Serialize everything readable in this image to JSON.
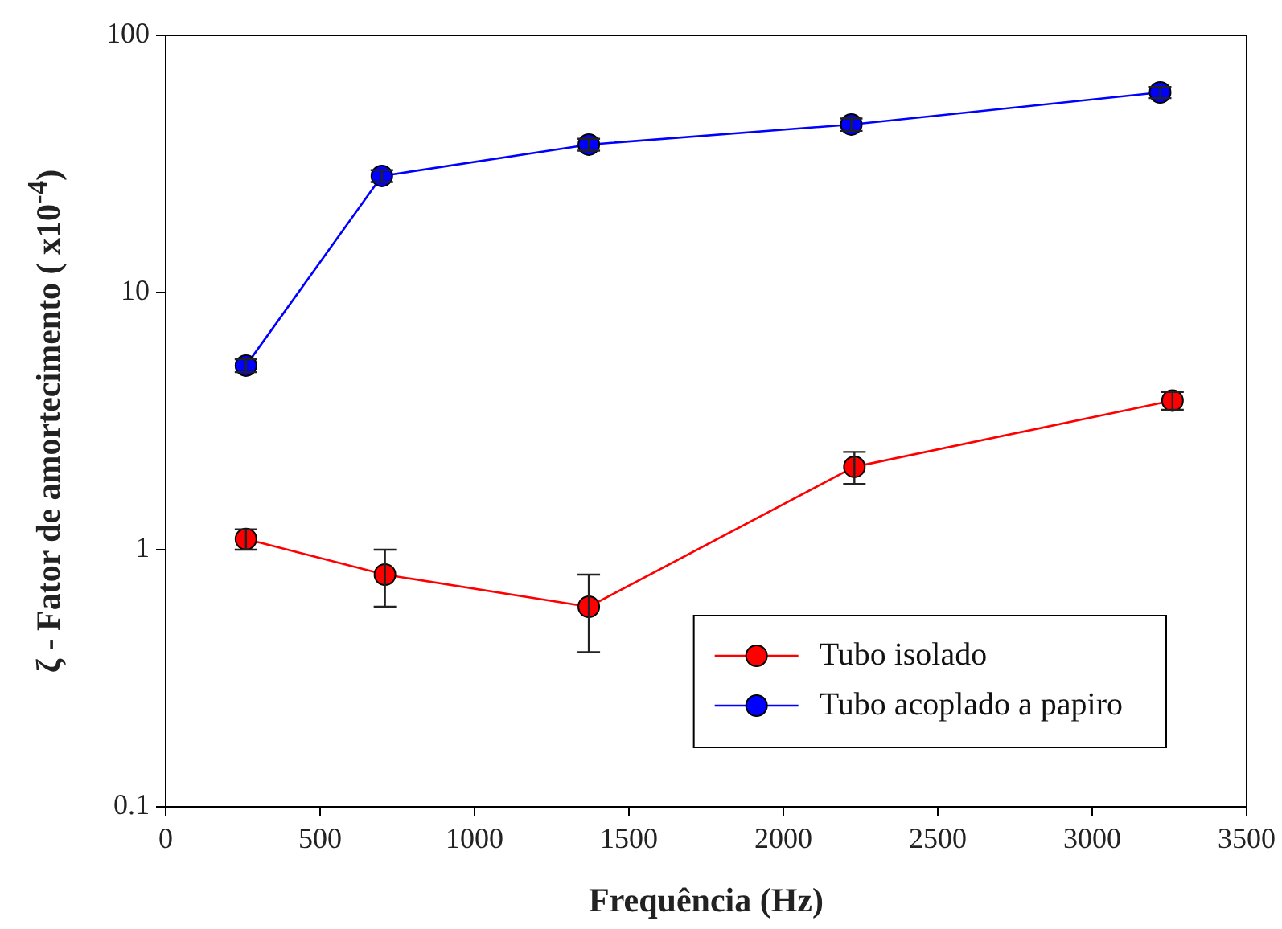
{
  "chart_data": {
    "type": "line",
    "xlabel": "Frequência (Hz)",
    "ylabel": "ζ - Fator de amortecimento ( x10$^{-4}$)",
    "xlim": [
      0,
      3500
    ],
    "xticks": [
      0,
      500,
      1000,
      1500,
      2000,
      2500,
      3000,
      3500
    ],
    "ylim": [
      0.1,
      100
    ],
    "yticks": [
      0.1,
      1,
      10,
      100
    ],
    "log": "y",
    "grid": false,
    "legend": "bottom right",
    "marker": "circle",
    "line_style": "solid",
    "series": [
      {
        "name": "Tubo isolado",
        "color": "#ff0000",
        "x": [
          260,
          710,
          1370,
          2230,
          3260
        ],
        "values": [
          1.1,
          0.8,
          0.6,
          2.1,
          3.8
        ],
        "errors": [
          [
            1.0,
            1.2
          ],
          [
            0.6,
            1.0
          ],
          [
            0.4,
            0.8
          ],
          [
            1.8,
            2.4
          ],
          [
            3.5,
            4.1
          ]
        ]
      },
      {
        "name": "Tubo acoplado a papiro",
        "color": "#0000ff",
        "x": [
          260,
          700,
          1370,
          2220,
          3220
        ],
        "values": [
          5.2,
          28.4,
          37.6,
          45,
          60
        ],
        "errors": [
          0.3,
          1.5,
          2,
          2.5,
          3
        ]
      }
    ]
  }
}
